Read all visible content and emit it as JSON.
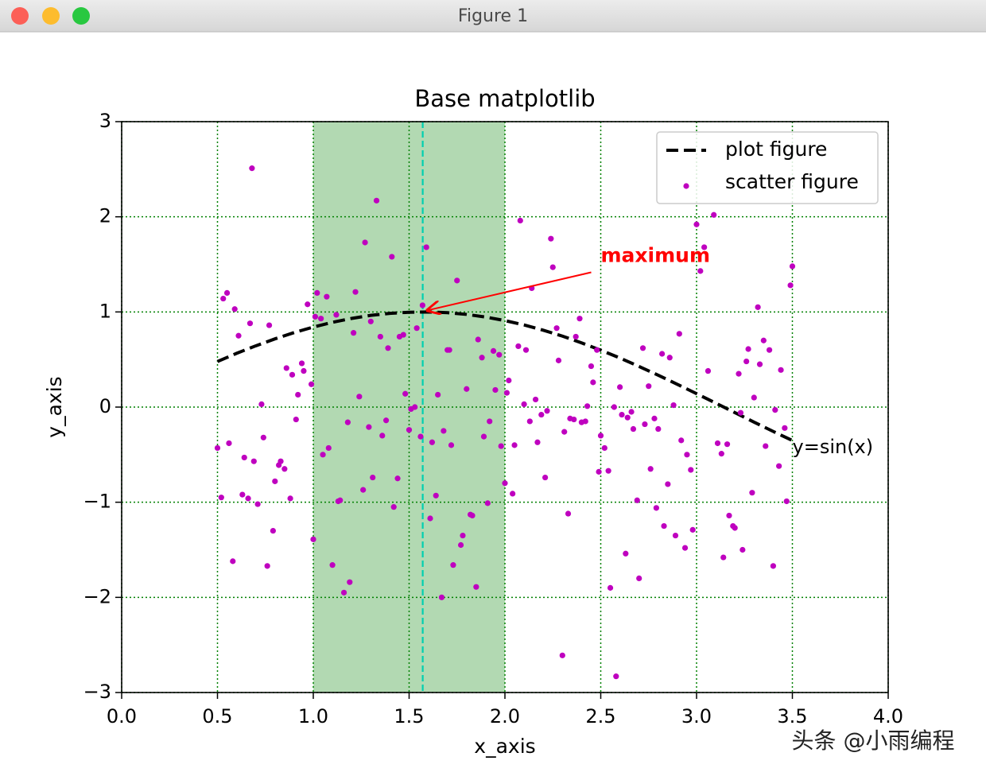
{
  "window_title": "Figure 1",
  "watermark": "头条 @小雨编程",
  "chart_data": {
    "type": "line",
    "title": "Base matplotlib",
    "x_label": "x_axis",
    "y_label": "y_axis",
    "xlim": [
      0,
      4
    ],
    "ylim": [
      -3,
      3
    ],
    "xticks": [
      {
        "value": 0,
        "label": "0.0"
      },
      0.5,
      {
        "value": 1,
        "label": "1.0"
      },
      1.5,
      {
        "value": 2,
        "label": "2.0"
      },
      2.5,
      {
        "value": 3,
        "label": "3.0"
      },
      3.5,
      {
        "value": 4,
        "label": "4.0"
      }
    ],
    "yticks": [
      {
        "value": -3,
        "label": "−3"
      },
      {
        "value": -2,
        "label": "−2"
      },
      {
        "value": -1,
        "label": "−1"
      },
      0,
      1,
      2,
      3
    ],
    "grid": true,
    "grid_color": "#008000",
    "legend": "upper right",
    "span": {
      "x": [
        1,
        2
      ],
      "color": "#008000"
    },
    "vline": {
      "x": 1.571,
      "color": "#00d0b0"
    },
    "annotation": {
      "text": "maximum",
      "xy": [
        1.571,
        1
      ],
      "xytext": [
        2.5,
        1.5
      ],
      "color": "#ff0000"
    },
    "text_label": {
      "text": "y=sin(x)",
      "x": 3.5,
      "y": -0.351
    },
    "series": [
      {
        "name": "plot figure",
        "type": "line",
        "color": "#000000",
        "x": [
          0.5,
          0.6,
          0.7,
          0.8,
          0.9,
          1.0,
          1.1,
          1.2,
          1.3,
          1.4,
          1.5,
          1.6,
          1.7,
          1.8,
          1.9,
          2.0,
          2.1,
          2.2,
          2.3,
          2.4,
          2.5,
          2.6,
          2.7,
          2.8,
          2.9,
          3.0,
          3.1,
          3.2,
          3.3,
          3.4,
          3.5
        ],
        "values": [
          0.479,
          0.565,
          0.644,
          0.717,
          0.783,
          0.841,
          0.891,
          0.932,
          0.964,
          0.985,
          0.997,
          1.0,
          0.992,
          0.974,
          0.946,
          0.909,
          0.863,
          0.808,
          0.746,
          0.675,
          0.598,
          0.516,
          0.427,
          0.335,
          0.239,
          0.141,
          0.042,
          -0.058,
          -0.158,
          -0.256,
          -0.351
        ]
      },
      {
        "name": "scatter figure",
        "type": "scatter",
        "color": "#bf00bf",
        "x": [
          0.5,
          0.52,
          0.53,
          0.55,
          0.56,
          0.58,
          0.59,
          0.61,
          0.63,
          0.64,
          0.66,
          0.67,
          0.68,
          0.69,
          0.71,
          0.73,
          0.74,
          0.76,
          0.77,
          0.79,
          0.8,
          0.82,
          0.83,
          0.85,
          0.86,
          0.88,
          0.89,
          0.91,
          0.92,
          0.94,
          0.95,
          0.97,
          0.99,
          1.0,
          1.01,
          1.02,
          1.04,
          1.05,
          1.07,
          1.08,
          1.1,
          1.12,
          1.13,
          1.14,
          1.16,
          1.18,
          1.19,
          1.21,
          1.22,
          1.24,
          1.26,
          1.27,
          1.29,
          1.3,
          1.31,
          1.33,
          1.35,
          1.36,
          1.38,
          1.39,
          1.41,
          1.42,
          1.44,
          1.45,
          1.47,
          1.48,
          1.5,
          1.51,
          1.53,
          1.54,
          1.56,
          1.57,
          1.59,
          1.61,
          1.62,
          1.64,
          1.65,
          1.67,
          1.68,
          1.7,
          1.71,
          1.72,
          1.73,
          1.75,
          1.77,
          1.78,
          1.8,
          1.82,
          1.83,
          1.85,
          1.86,
          1.88,
          1.89,
          1.91,
          1.92,
          1.94,
          1.95,
          1.97,
          1.98,
          2.0,
          2.01,
          2.02,
          2.04,
          2.05,
          2.07,
          2.08,
          2.1,
          2.11,
          2.13,
          2.14,
          2.16,
          2.17,
          2.19,
          2.21,
          2.22,
          2.24,
          2.25,
          2.27,
          2.28,
          2.3,
          2.31,
          2.33,
          2.34,
          2.36,
          2.37,
          2.39,
          2.4,
          2.42,
          2.43,
          2.45,
          2.46,
          2.48,
          2.49,
          2.5,
          2.52,
          2.54,
          2.55,
          2.57,
          2.58,
          2.6,
          2.61,
          2.63,
          2.64,
          2.66,
          2.67,
          2.69,
          2.7,
          2.72,
          2.73,
          2.75,
          2.76,
          2.78,
          2.79,
          2.8,
          2.82,
          2.83,
          2.85,
          2.86,
          2.88,
          2.89,
          2.91,
          2.92,
          2.94,
          2.95,
          2.97,
          2.98,
          3.0,
          3.02,
          3.04,
          3.06,
          3.09,
          3.11,
          3.13,
          3.14,
          3.16,
          3.17,
          3.19,
          3.2,
          3.22,
          3.23,
          3.24,
          3.26,
          3.27,
          3.29,
          3.3,
          3.32,
          3.33,
          3.35,
          3.36,
          3.38,
          3.4,
          3.41,
          3.43,
          3.44,
          3.46,
          3.47,
          3.49,
          3.5
        ],
        "values": [
          -0.43,
          -0.95,
          1.14,
          1.2,
          -0.38,
          -1.62,
          1.03,
          0.75,
          -0.92,
          -0.53,
          -0.96,
          0.88,
          2.51,
          -0.57,
          -1.02,
          0.03,
          -0.32,
          -1.67,
          0.86,
          -1.3,
          -0.78,
          -0.61,
          -0.57,
          -0.65,
          0.41,
          -0.96,
          0.34,
          -0.13,
          0.13,
          0.46,
          0.38,
          1.08,
          0.24,
          -1.39,
          0.95,
          1.2,
          0.93,
          -0.5,
          1.16,
          -0.43,
          -1.66,
          0.97,
          -0.99,
          -0.98,
          -1.95,
          -0.16,
          -1.84,
          0.78,
          1.21,
          0.11,
          -0.87,
          1.73,
          -0.21,
          0.9,
          -0.74,
          2.17,
          0.74,
          -0.3,
          -0.14,
          0.62,
          1.58,
          -1.05,
          -0.75,
          0.74,
          0.76,
          0.14,
          -0.24,
          -0.02,
          0.0,
          0.83,
          -0.31,
          1.07,
          1.68,
          -1.17,
          -0.37,
          -0.93,
          0.13,
          -2.0,
          -0.25,
          0.6,
          0.6,
          -0.4,
          -1.66,
          1.33,
          -1.45,
          -1.35,
          0.19,
          -1.13,
          -1.14,
          -1.89,
          0.71,
          0.52,
          -0.31,
          -1.01,
          -0.15,
          0.59,
          0.18,
          0.55,
          -0.41,
          -0.8,
          0.15,
          0.28,
          -0.91,
          -0.4,
          0.64,
          1.96,
          0.03,
          0.6,
          -0.15,
          1.25,
          0.08,
          -0.37,
          -0.08,
          -0.74,
          -0.04,
          1.77,
          1.47,
          0.83,
          0.49,
          -2.61,
          -0.26,
          -1.12,
          -0.12,
          -0.13,
          0.74,
          0.93,
          -0.16,
          -0.15,
          0.01,
          0.43,
          0.26,
          0.6,
          -0.68,
          -0.3,
          -0.43,
          -0.67,
          -1.9,
          0.0,
          -2.83,
          0.21,
          -0.08,
          -1.54,
          -0.11,
          -0.05,
          -0.23,
          -0.98,
          -1.8,
          0.62,
          -0.18,
          0.22,
          -0.65,
          -0.12,
          -1.06,
          -0.23,
          0.56,
          -1.25,
          -0.81,
          0.52,
          0.02,
          -1.35,
          0.77,
          -0.35,
          -1.48,
          -0.5,
          -0.66,
          -1.29,
          1.92,
          1.43,
          1.68,
          0.38,
          2.02,
          -0.38,
          -0.49,
          -1.58,
          -0.39,
          -1.14,
          -1.25,
          -1.27,
          0.35,
          -0.06,
          -1.5,
          0.48,
          0.61,
          -0.9,
          0.1,
          1.05,
          0.45,
          0.7,
          -0.41,
          0.6,
          -1.67,
          -0.03,
          -0.62,
          0.39,
          -0.22,
          -0.99,
          1.28,
          1.48
        ]
      }
    ]
  }
}
